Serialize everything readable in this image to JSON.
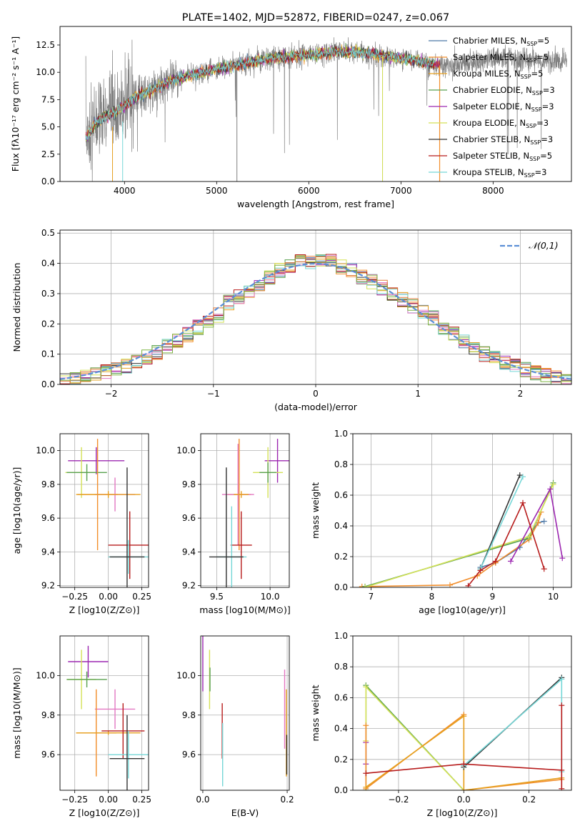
{
  "colors": {
    "Chabrier MILES": "#4e79a7",
    "Salpeter MILES": "#f28e2b",
    "Kroupa MILES": "#e6a020",
    "Chabrier ELODIE": "#59a14f",
    "Salpeter ELODIE": "#9c27b0",
    "Kroupa ELODIE": "#d4e157",
    "Chabrier STELIB": "#333333",
    "Salpeter STELIB": "#b71c1c",
    "Kroupa STELIB": "#76d7d7",
    "extra_pink": "#e377c2",
    "extra_orange": "#e07b39",
    "extra_green": "#7cb342",
    "gaussian": "#5b8ed6",
    "data": "#808080"
  },
  "chart_data": [
    {
      "id": "spectrum",
      "type": "line",
      "title": "PLATE=1402, MJD=52872, FIBERID=0247, z=0.067",
      "xlabel": "wavelength [Angstrom, rest frame]",
      "ylabel": "Flux [fλ10⁻¹⁷ erg cm⁻² s⁻¹ A⁻¹]",
      "xlim": [
        3300,
        8850
      ],
      "ylim": [
        0,
        14.2
      ],
      "xticks": [
        4000,
        5000,
        6000,
        7000,
        8000
      ],
      "yticks": [
        0.0,
        2.5,
        5.0,
        7.5,
        10.0,
        12.5
      ],
      "legend_position": "top-right",
      "legend": [
        "Chabrier MILES, N_SSP=5",
        "Salpeter MILES, N_SSP=5",
        "Kroupa MILES, N_SSP=5",
        "Chabrier ELODIE, N_SSP=3",
        "Salpeter ELODIE, N_SSP=3",
        "Kroupa ELODIE, N_SSP=3",
        "Chabrier STELIB, N_SSP=3",
        "Salpeter STELIB, N_SSP=5",
        "Kroupa STELIB, N_SSP=3"
      ],
      "data_envelope": {
        "x": [
          3580,
          3700,
          3800,
          3900,
          4000,
          4100,
          4200,
          4300,
          4400,
          4500,
          4700,
          5000,
          5300,
          5600,
          6000,
          6300,
          6600,
          7000,
          7300,
          7500,
          7800,
          8100,
          8400,
          8800
        ],
        "y": [
          4.0,
          5.5,
          6.0,
          6.4,
          6.9,
          7.6,
          8.1,
          8.4,
          8.8,
          9.2,
          9.7,
          10.3,
          10.8,
          11.3,
          11.6,
          11.9,
          11.8,
          11.3,
          10.8,
          10.6,
          10.9,
          11.3,
          11.1,
          10.9
        ]
      },
      "model_x_range": [
        3580,
        7420
      ]
    },
    {
      "id": "residual_hist",
      "type": "step",
      "xlabel": "(data-model)/error",
      "ylabel": "Normed distribution",
      "xlim": [
        -2.5,
        2.5
      ],
      "ylim": [
        0,
        0.51
      ],
      "xticks": [
        -2,
        -1,
        0,
        1,
        2
      ],
      "yticks": [
        0.0,
        0.1,
        0.2,
        0.3,
        0.4,
        0.5
      ],
      "legend": [
        "N(0,1)"
      ],
      "bins": [
        -2.5,
        2.5,
        50
      ],
      "series_base": [
        0.012,
        0.02,
        0.025,
        0.033,
        0.04,
        0.055,
        0.062,
        0.075,
        0.09,
        0.105,
        0.125,
        0.145,
        0.165,
        0.19,
        0.205,
        0.23,
        0.27,
        0.29,
        0.31,
        0.33,
        0.355,
        0.375,
        0.395,
        0.41,
        0.405,
        0.41,
        0.405,
        0.39,
        0.375,
        0.355,
        0.34,
        0.32,
        0.3,
        0.28,
        0.26,
        0.24,
        0.22,
        0.19,
        0.165,
        0.14,
        0.12,
        0.1,
        0.085,
        0.07,
        0.06,
        0.05,
        0.038,
        0.03,
        0.02,
        0.012
      ]
    },
    {
      "id": "age_vs_Z",
      "type": "errorbar",
      "xlabel": "Z [log10(Z/Z⊙)]",
      "ylabel": "age  [log10(age/yr)]",
      "xlim": [
        -0.36,
        0.3
      ],
      "ylim": [
        9.19,
        10.1
      ],
      "xticks": [
        -0.25,
        0.0,
        0.25
      ],
      "yticks": [
        9.2,
        9.4,
        9.6,
        9.8,
        10.0
      ],
      "points": [
        {
          "model": "Salpeter ELODIE",
          "x": -0.09,
          "y": 9.94,
          "xerr": 0.21,
          "yerr": 0.08
        },
        {
          "model": "Kroupa ELODIE",
          "x": -0.2,
          "y": 9.87,
          "xerr": 0.12,
          "yerr": 0.15
        },
        {
          "model": "Chabrier ELODIE",
          "x": -0.16,
          "y": 9.87,
          "xerr": 0.15,
          "yerr": 0.05
        },
        {
          "model": "Salpeter MILES",
          "x": -0.08,
          "y": 9.74,
          "xerr": 0.15,
          "yerr": 0.33
        },
        {
          "model": "extra_pink",
          "x": 0.05,
          "y": 9.74,
          "xerr": 0.15,
          "yerr": 0.1
        },
        {
          "model": "Kroupa MILES",
          "x": 0.0,
          "y": 9.74,
          "xerr": 0.24,
          "yerr": 0.02
        },
        {
          "model": "Salpeter STELIB",
          "x": 0.16,
          "y": 9.44,
          "xerr": 0.16,
          "yerr": 0.2
        },
        {
          "model": "Kroupa STELIB",
          "x": 0.15,
          "y": 9.37,
          "xerr": 0.15,
          "yerr": 0.1
        },
        {
          "model": "Chabrier STELIB",
          "x": 0.14,
          "y": 9.37,
          "xerr": 0.13,
          "yerr": 0.53
        }
      ]
    },
    {
      "id": "age_vs_mass",
      "type": "errorbar",
      "xlabel": "mass [log10(M/M⊙)]",
      "ylabel": "",
      "xlim": [
        9.35,
        10.18
      ],
      "ylim": [
        9.19,
        10.1
      ],
      "xticks": [
        9.5,
        10.0
      ],
      "yticks": [
        9.2,
        9.4,
        9.6,
        9.8,
        10.0
      ],
      "points": [
        {
          "model": "Salpeter ELODIE",
          "x": 10.07,
          "y": 9.94,
          "xerr": 0.12,
          "yerr": 0.13
        },
        {
          "model": "Kroupa ELODIE",
          "x": 9.98,
          "y": 9.87,
          "xerr": 0.14,
          "yerr": 0.15
        },
        {
          "model": "Chabrier ELODIE",
          "x": 9.98,
          "y": 9.87,
          "xerr": 0.08,
          "yerr": 0.06
        },
        {
          "model": "Salpeter MILES",
          "x": 9.71,
          "y": 9.74,
          "xerr": 0.11,
          "yerr": 0.33
        },
        {
          "model": "extra_pink",
          "x": 9.7,
          "y": 9.74,
          "xerr": 0.15,
          "yerr": 0.3
        },
        {
          "model": "Kroupa MILES",
          "x": 9.73,
          "y": 9.74,
          "xerr": 0.07,
          "yerr": 0.02
        },
        {
          "model": "Salpeter STELIB",
          "x": 9.73,
          "y": 9.44,
          "xerr": 0.1,
          "yerr": 0.2
        },
        {
          "model": "Kroupa STELIB",
          "x": 9.64,
          "y": 9.37,
          "xerr": 0.14,
          "yerr": 0.3
        },
        {
          "model": "Chabrier STELIB",
          "x": 9.59,
          "y": 9.37,
          "xerr": 0.16,
          "yerr": 0.53
        }
      ]
    },
    {
      "id": "weight_vs_age",
      "type": "line",
      "xlabel": "age  [log10(age/yr)]",
      "ylabel": "mass weight",
      "xlim": [
        6.7,
        10.3
      ],
      "ylim": [
        0,
        1.0
      ],
      "xticks": [
        7,
        8,
        9,
        10
      ],
      "yticks": [
        0.0,
        0.2,
        0.4,
        0.6,
        0.8,
        1.0
      ],
      "series": [
        {
          "model": "Chabrier MILES",
          "x": [
            8.8,
            9.05,
            9.45,
            9.75,
            9.85
          ],
          "y": [
            0.13,
            0.16,
            0.26,
            0.42,
            0.43
          ]
        },
        {
          "model": "Salpeter MILES",
          "x": [
            6.85,
            8.3,
            8.75,
            9.05,
            9.6,
            9.75,
            9.8
          ],
          "y": [
            0.005,
            0.015,
            0.075,
            0.16,
            0.31,
            0.42,
            0.49
          ]
        },
        {
          "model": "Chabrier ELODIE",
          "x": [
            6.9,
            9.6,
            10.0
          ],
          "y": [
            0.005,
            0.32,
            0.68
          ]
        },
        {
          "model": "Kroupa ELODIE",
          "x": [
            6.9,
            9.6,
            10.0
          ],
          "y": [
            0.0,
            0.33,
            0.67
          ]
        },
        {
          "model": "Salpeter ELODIE",
          "x": [
            9.3,
            9.95,
            10.15
          ],
          "y": [
            0.17,
            0.64,
            0.19
          ]
        },
        {
          "model": "Chabrier STELIB",
          "x": [
            8.8,
            9.45
          ],
          "y": [
            0.12,
            0.73
          ]
        },
        {
          "model": "Kroupa STELIB",
          "x": [
            8.8,
            9.5
          ],
          "y": [
            0.12,
            0.72
          ]
        },
        {
          "model": "Salpeter STELIB",
          "x": [
            8.6,
            8.8,
            9.05,
            9.5,
            9.85
          ],
          "y": [
            0.01,
            0.11,
            0.17,
            0.55,
            0.12
          ]
        }
      ]
    },
    {
      "id": "mass_vs_Z",
      "type": "errorbar",
      "xlabel": "Z [log10(Z/Z⊙)]",
      "ylabel": "mass [log10(M/M⊙)]",
      "xlim": [
        -0.36,
        0.3
      ],
      "ylim": [
        9.42,
        10.2
      ],
      "xticks": [
        -0.25,
        0.0,
        0.25
      ],
      "yticks": [
        9.6,
        9.8,
        10.0
      ],
      "points": [
        {
          "model": "Salpeter ELODIE",
          "x": -0.15,
          "y": 10.07,
          "xerr": 0.15,
          "yerr": 0.08
        },
        {
          "model": "Kroupa ELODIE",
          "x": -0.2,
          "y": 9.98,
          "xerr": 0.11,
          "yerr": 0.15
        },
        {
          "model": "Chabrier ELODIE",
          "x": -0.16,
          "y": 9.98,
          "xerr": 0.15,
          "yerr": 0.04
        },
        {
          "model": "extra_pink",
          "x": 0.05,
          "y": 9.83,
          "xerr": 0.15,
          "yerr": 0.1
        },
        {
          "model": "Salpeter MILES",
          "x": -0.09,
          "y": 9.71,
          "xerr": 0.15,
          "yerr": 0.22
        },
        {
          "model": "Kroupa MILES",
          "x": 0.0,
          "y": 9.71,
          "xerr": 0.24,
          "yerr": 0.01
        },
        {
          "model": "Salpeter STELIB",
          "x": 0.11,
          "y": 9.72,
          "xerr": 0.16,
          "yerr": 0.14
        },
        {
          "model": "Kroupa STELIB",
          "x": 0.15,
          "y": 9.6,
          "xerr": 0.15,
          "yerr": 0.12
        },
        {
          "model": "Chabrier STELIB",
          "x": 0.14,
          "y": 9.58,
          "xerr": 0.13,
          "yerr": 0.22
        }
      ]
    },
    {
      "id": "mass_vs_ebv",
      "type": "errorbar",
      "xlabel": "E(B-V)",
      "ylabel": "",
      "xlim": [
        -0.005,
        0.205
      ],
      "ylim": [
        9.42,
        10.2
      ],
      "xticks": [
        0.0,
        0.2
      ],
      "yticks": [
        9.6,
        9.8,
        10.0
      ],
      "points": [
        {
          "model": "Salpeter ELODIE",
          "x": 0.0,
          "y": 10.07,
          "xerr": 0.0,
          "yerr": 0.15
        },
        {
          "model": "Kroupa ELODIE",
          "x": 0.016,
          "y": 9.98,
          "xerr": 0.0,
          "yerr": 0.15
        },
        {
          "model": "Chabrier ELODIE",
          "x": 0.017,
          "y": 9.98,
          "xerr": 0.0,
          "yerr": 0.06
        },
        {
          "model": "Salpeter STELIB",
          "x": 0.046,
          "y": 9.72,
          "xerr": 0.0,
          "yerr": 0.14
        },
        {
          "model": "Kroupa STELIB",
          "x": 0.047,
          "y": 9.6,
          "xerr": 0.0,
          "yerr": 0.16
        },
        {
          "model": "extra_pink",
          "x": 0.194,
          "y": 9.83,
          "xerr": 0.0,
          "yerr": 0.2
        },
        {
          "model": "Kroupa MILES",
          "x": 0.198,
          "y": 9.71,
          "xerr": 0.0,
          "yerr": 0.22
        },
        {
          "model": "Chabrier STELIB",
          "x": 0.199,
          "y": 9.6,
          "xerr": 0.0,
          "yerr": 0.1
        }
      ]
    },
    {
      "id": "weight_vs_Z",
      "type": "line",
      "xlabel": "Z [log10(Z/Z⊙)]",
      "ylabel": "mass weight",
      "xlim": [
        -0.34,
        0.33
      ],
      "ylim": [
        0,
        1.0
      ],
      "xticks": [
        -0.2,
        0.0,
        0.2
      ],
      "yticks": [
        0.0,
        0.2,
        0.4,
        0.6,
        0.8,
        1.0
      ],
      "series": [
        {
          "model": "Chabrier ELODIE",
          "x": [
            -0.3,
            -0.3,
            0.0
          ],
          "y": [
            0.0,
            0.68,
            0.0
          ]
        },
        {
          "model": "Kroupa ELODIE",
          "x": [
            -0.3,
            -0.3,
            0.0
          ],
          "y": [
            0.32,
            0.67,
            0.0
          ]
        },
        {
          "model": "Salpeter ELODIE",
          "x": [
            -0.3,
            -0.3
          ],
          "y": [
            0.17,
            0.31
          ]
        },
        {
          "model": "Salpeter MILES",
          "x": [
            -0.3,
            -0.3,
            0.0,
            0.0,
            0.3
          ],
          "y": [
            0.42,
            0.01,
            0.49,
            0.0,
            0.07
          ]
        },
        {
          "model": "Kroupa MILES",
          "x": [
            -0.3,
            0.0,
            0.0,
            0.3
          ],
          "y": [
            0.02,
            0.48,
            0.0,
            0.08
          ]
        },
        {
          "model": "Chabrier STELIB",
          "x": [
            0.0,
            0.3
          ],
          "y": [
            0.15,
            0.73
          ]
        },
        {
          "model": "Kroupa STELIB",
          "x": [
            0.0,
            0.3,
            0.3
          ],
          "y": [
            0.16,
            0.72,
            0.12
          ]
        },
        {
          "model": "Salpeter STELIB",
          "x": [
            -0.3,
            0.0,
            0.3,
            0.3,
            0.3
          ],
          "y": [
            0.11,
            0.17,
            0.13,
            0.01,
            0.55
          ]
        }
      ]
    }
  ]
}
